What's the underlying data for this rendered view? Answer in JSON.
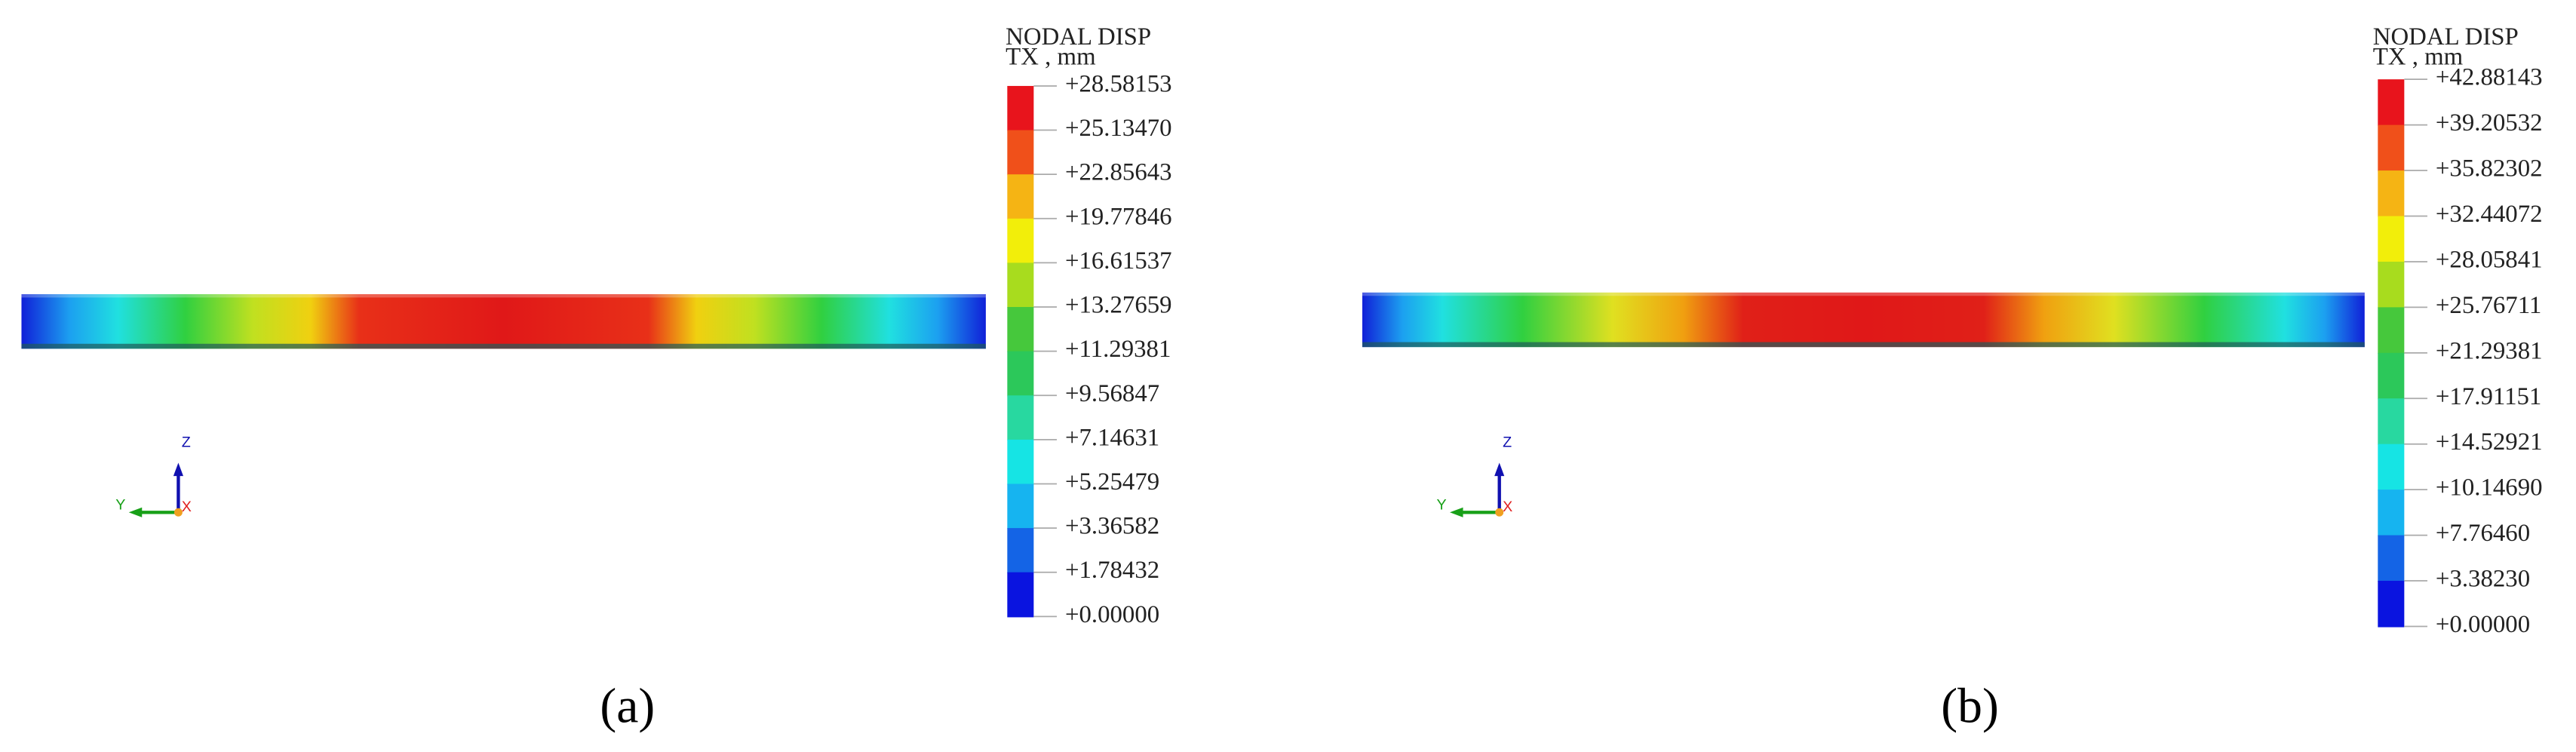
{
  "panels": [
    {
      "caption": "(a)",
      "legend": {
        "title_lines": [
          "NODAL DISP",
          "TX , mm"
        ],
        "labels": [
          "+28.58153",
          "+25.13470",
          "+22.85643",
          "+19.77846",
          "+16.61537",
          "+13.27659",
          "+11.29381",
          "+9.56847",
          "+7.14631",
          "+5.25479",
          "+3.36582",
          "+1.78432",
          "+0.00000"
        ]
      },
      "triad": {
        "z": "Z",
        "y": "Y",
        "x": "X"
      }
    },
    {
      "caption": "(b)",
      "legend": {
        "title_lines": [
          "NODAL DISP",
          "TX , mm"
        ],
        "labels": [
          "+42.88143",
          "+39.20532",
          "+35.82302",
          "+32.44072",
          "+28.05841",
          "+25.76711",
          "+21.29381",
          "+17.91151",
          "+14.52921",
          "+10.14690",
          "+7.76460",
          "+3.38230",
          "+0.00000"
        ]
      },
      "triad": {
        "z": "Z",
        "y": "Y",
        "x": "X"
      }
    }
  ],
  "band_colors": [
    "#e8141c",
    "#f0501a",
    "#f5b414",
    "#f2ee0a",
    "#a8dc1e",
    "#46c83c",
    "#2cc85a",
    "#28d8a0",
    "#16e4e4",
    "#16b4f0",
    "#1464e6",
    "#0a14e0"
  ]
}
